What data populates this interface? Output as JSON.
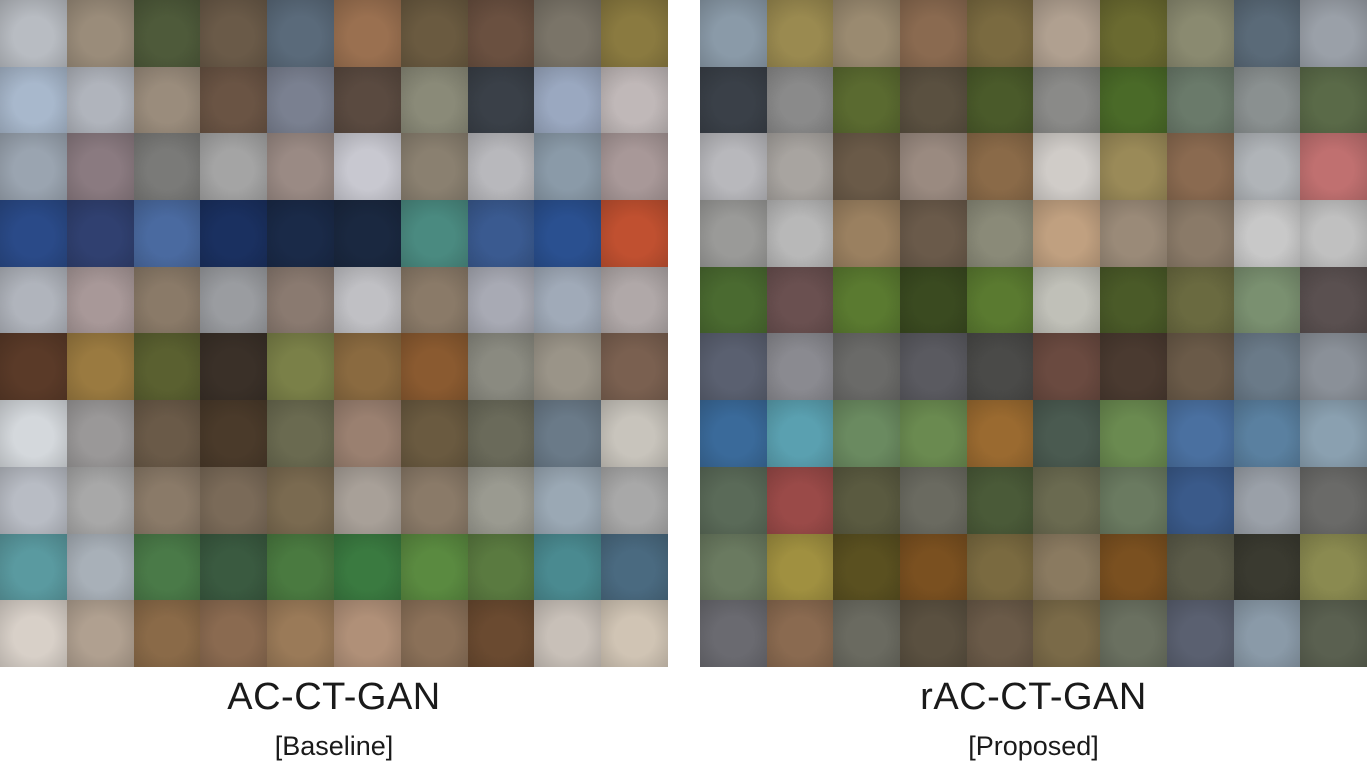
{
  "panels": [
    {
      "title": "AC-CT-GAN",
      "subtitle": "[Baseline]",
      "rows": [
        [
          "#b8bcc2",
          "#9a8c7a",
          "#4e5a3a",
          "#6a5a48",
          "#5a6a7a",
          "#9a7050",
          "#6a5a40",
          "#6a5040",
          "#7a7468",
          "#8a7a40"
        ],
        [
          "#a8b8cc",
          "#b0b4bc",
          "#9a8c7c",
          "#6a5444",
          "#7a8090",
          "#5a4a40",
          "#8a8a78",
          "#3a4048",
          "#9aa8c0",
          "#c0b8b8"
        ],
        [
          "#9aa4b0",
          "#8a7a80",
          "#7a7a78",
          "#a4a4a4",
          "#9a8a84",
          "#c8c8d0",
          "#8a8070",
          "#b8b8bc",
          "#8a9aa8",
          "#a89898"
        ],
        [
          "#2a4a88",
          "#304070",
          "#4a6aa0",
          "#1a3060",
          "#1a2a48",
          "#1a2840",
          "#4a8a80",
          "#3a5a90",
          "#2a5090",
          "#c05030"
        ],
        [
          "#b0b4bc",
          "#a89898",
          "#8a7a68",
          "#9a9ca0",
          "#8a7a70",
          "#c0c0c4",
          "#8a7a68",
          "#a8aab4",
          "#a0aab8",
          "#b0a8a8"
        ],
        [
          "#5a3a28",
          "#9a7a40",
          "#5a6030",
          "#3a3028",
          "#7a8048",
          "#8a6a40",
          "#8a5a30",
          "#8a8a80",
          "#9a9488",
          "#7a6050"
        ],
        [
          "#d4d8dc",
          "#9a9898",
          "#6a5a48",
          "#4a3a2a",
          "#6a6a50",
          "#9a8070",
          "#6a5a40",
          "#6a6a5a",
          "#6a7a88",
          "#c8c4bc"
        ],
        [
          "#b8bcc4",
          "#a8a8a8",
          "#8a7a68",
          "#7a6a58",
          "#7a6a50",
          "#a8a098",
          "#8a7a68",
          "#9a9a90",
          "#9aa8b4",
          "#a8a8a8"
        ],
        [
          "#5a9aa0",
          "#a8b0b8",
          "#4a7a48",
          "#3a5a40",
          "#4a7a40",
          "#3a7a40",
          "#5a8a40",
          "#5a7a40",
          "#4a8a90",
          "#4a6a80"
        ],
        [
          "#d8d0c8",
          "#b0a090",
          "#8a6a48",
          "#8a6a50",
          "#9a7a58",
          "#b09078",
          "#8a7058",
          "#6a4a30",
          "#c8c0b8",
          "#d0c4b4"
        ]
      ]
    },
    {
      "title": "rAC-CT-GAN",
      "subtitle": "[Proposed]",
      "rows": [
        [
          "#8a9aa8",
          "#9a8a50",
          "#9a8a70",
          "#8a6a50",
          "#7a6a40",
          "#b0a090",
          "#6a6a30",
          "#8a8a70",
          "#5a6a78",
          "#9aa0a8"
        ],
        [
          "#3a4048",
          "#8a8a8a",
          "#5a6a30",
          "#5a5040",
          "#4a5a2a",
          "#8a8a88",
          "#4a6a28",
          "#6a7a6a",
          "#8a9090",
          "#5a6a48"
        ],
        [
          "#b8b8bc",
          "#a8a4a0",
          "#6a5a48",
          "#9a8a80",
          "#8a6a48",
          "#d0ccc8",
          "#9a8a58",
          "#8a6a50",
          "#b0b4b8",
          "#c07070"
        ],
        [
          "#9a9a98",
          "#b8b8b8",
          "#9a8060",
          "#6a5a4a",
          "#8a8a78",
          "#c0a080",
          "#9a8a78",
          "#8a7a68",
          "#c8c8c8",
          "#c0c0c0"
        ],
        [
          "#4a6a30",
          "#6a5050",
          "#5a7a30",
          "#3a4a20",
          "#5a7a30",
          "#c0c0b8",
          "#4a5a28",
          "#6a6a40",
          "#7a9070",
          "#5a5050"
        ],
        [
          "#5a6070",
          "#8a8a90",
          "#6a6a68",
          "#5a5a60",
          "#4a4a48",
          "#6a4a40",
          "#4a3a30",
          "#6a5a48",
          "#6a7a88",
          "#8a9098"
        ],
        [
          "#3a6a9a",
          "#5aa0b0",
          "#6a8a60",
          "#6a8a50",
          "#9a6a30",
          "#4a5a50",
          "#6a8a50",
          "#4a70a0",
          "#5a80a0",
          "#8aa0b0"
        ],
        [
          "#5a6a58",
          "#9a4a48",
          "#5a5a40",
          "#6a6a60",
          "#4a5a38",
          "#6a6a50",
          "#6a7a60",
          "#3a5a8a",
          "#9aa0a8",
          "#6a6a68"
        ],
        [
          "#6a7a60",
          "#a09040",
          "#5a5020",
          "#7a5020",
          "#7a6a40",
          "#8a7a60",
          "#7a5020",
          "#5a5a48",
          "#3a3a30",
          "#8a8a50"
        ],
        [
          "#6a6a70",
          "#8a6a50",
          "#6a6a60",
          "#5a5040",
          "#6a5a48",
          "#7a6a48",
          "#6a7060",
          "#5a6070",
          "#8a9aa8",
          "#5a6050"
        ]
      ]
    }
  ]
}
